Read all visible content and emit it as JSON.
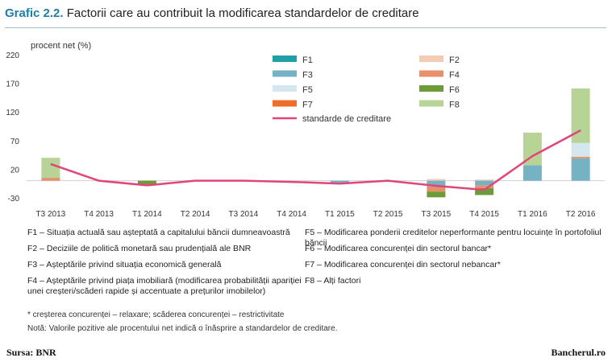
{
  "header": {
    "title_num": "Grafic 2.2.",
    "title_text": "Factorii care au contribuit la modificarea standardelor de creditare"
  },
  "chart_data": {
    "type": "bar",
    "ylabel": "procent net (%)",
    "ylim": [
      -30,
      220
    ],
    "yticks": [
      220,
      170,
      120,
      70,
      20,
      -30
    ],
    "categories": [
      "T3 2013",
      "T4 2013",
      "T1 2014",
      "T2 2014",
      "T3 2014",
      "T4 2014",
      "T1 2015",
      "T2 2015",
      "T3 2015",
      "T4 2015",
      "T1 2016",
      "T2 2016"
    ],
    "series": [
      {
        "name": "F1",
        "color": "#1f9fa8",
        "values": [
          0,
          0,
          0,
          0,
          0,
          0,
          0,
          0,
          0,
          0,
          0,
          0
        ]
      },
      {
        "name": "F2",
        "color": "#f4cbb4",
        "values": [
          0,
          0,
          0,
          0,
          0,
          0,
          0,
          0,
          3,
          2,
          0,
          0
        ]
      },
      {
        "name": "F3",
        "color": "#75b3c4",
        "values": [
          0,
          0,
          0,
          0,
          0,
          0,
          -4,
          0,
          -10,
          -8,
          27,
          39
        ]
      },
      {
        "name": "F4",
        "color": "#e8906a",
        "values": [
          5,
          0,
          0,
          0,
          0,
          0,
          0,
          0,
          -9,
          -5,
          0,
          3
        ]
      },
      {
        "name": "F5",
        "color": "#d5e7ee",
        "values": [
          0,
          0,
          0,
          0,
          0,
          0,
          0,
          0,
          0,
          0,
          0,
          24
        ]
      },
      {
        "name": "F6",
        "color": "#6d9b3a",
        "values": [
          0,
          0,
          -8,
          0,
          0,
          0,
          0,
          0,
          -10,
          -12,
          0,
          0
        ]
      },
      {
        "name": "F7",
        "color": "#ef6c2a",
        "values": [
          0,
          0,
          0,
          0,
          0,
          0,
          0,
          0,
          0,
          0,
          0,
          0
        ]
      },
      {
        "name": "F8",
        "color": "#b7d395",
        "values": [
          35,
          0,
          0,
          0,
          0,
          0,
          0,
          0,
          0,
          0,
          57,
          95
        ]
      }
    ],
    "line": {
      "name": "standarde de creditare",
      "color": "#e0457b",
      "values": [
        29,
        0,
        -8,
        0,
        0,
        -2,
        -5,
        0,
        -9,
        -16,
        43,
        88
      ]
    }
  },
  "notes": {
    "f1": "F1 – Situația actuală sau așteptată a capitalului băncii dumneavoastră",
    "f2": "F2 – Deciziile de politică monetară sau prudențială ale BNR",
    "f3": "F3 – Așteptările privind situația economică generală",
    "f4a": "F4 – Așteptările privind piața imobiliară (modificarea probabilității apariției",
    "f4b": "unei creșteri/scăderi rapide și accentuate a prețurilor imobilelor)",
    "f5": "F5 – Modificarea ponderii creditelor neperformante pentru locuințe în portofoliul băncii",
    "f6": "F6 – Modificarea concurenței din sectorul bancar*",
    "f7": "F7 – Modificarea concurenței din sectorul nebancar*",
    "f8": "F8 – Alți factori",
    "star": "* creșterea concurenței – relaxare; scăderea concurenței – restrictivitate",
    "nota": "Notă: Valorile pozitive ale procentului net indică o înăsprire a standardelor de creditare."
  },
  "footer": {
    "source": "Sursa: BNR",
    "site": "Bancherul.ro"
  }
}
